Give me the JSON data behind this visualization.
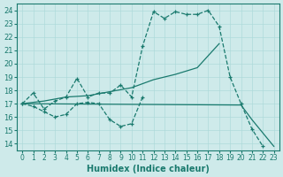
{
  "xlabel": "Humidex (Indice chaleur)",
  "background_color": "#ceeaea",
  "line_color": "#1a7a6e",
  "xlim": [
    -0.5,
    23.5
  ],
  "ylim": [
    13.5,
    24.5
  ],
  "xtick_labels": [
    "0",
    "1",
    "2",
    "3",
    "4",
    "5",
    "6",
    "7",
    "8",
    "9",
    "10",
    "11",
    "12",
    "13",
    "14",
    "15",
    "16",
    "17",
    "18",
    "19",
    "20",
    "21",
    "22",
    "23"
  ],
  "ytick_labels": [
    "14",
    "15",
    "16",
    "17",
    "18",
    "19",
    "20",
    "21",
    "22",
    "23",
    "24"
  ],
  "lines": [
    {
      "x": [
        0,
        1,
        2,
        3,
        4,
        5,
        6,
        7,
        8,
        9,
        10,
        11,
        12,
        13,
        14,
        15,
        16,
        17,
        18,
        19,
        20,
        21,
        22
      ],
      "y": [
        17.0,
        17.8,
        16.6,
        17.2,
        17.5,
        18.9,
        17.5,
        17.8,
        17.8,
        18.4,
        17.5,
        21.3,
        23.9,
        23.4,
        23.9,
        23.7,
        23.7,
        24.0,
        22.8,
        19.0,
        17.0,
        15.1,
        13.8
      ],
      "linestyle": "--",
      "marker": "+"
    },
    {
      "x": [
        0,
        1,
        2,
        3,
        4,
        5,
        6,
        7,
        8,
        9,
        10,
        11
      ],
      "y": [
        17.0,
        16.8,
        16.4,
        16.0,
        16.2,
        17.0,
        17.1,
        17.0,
        15.8,
        15.3,
        15.5,
        17.5
      ],
      "linestyle": "--",
      "marker": "+"
    },
    {
      "x": [
        0,
        2,
        4,
        6,
        8,
        10,
        11,
        12,
        14,
        16,
        18
      ],
      "y": [
        17.0,
        17.2,
        17.5,
        17.6,
        17.9,
        18.2,
        18.5,
        18.8,
        19.2,
        19.7,
        21.5
      ],
      "linestyle": "-",
      "marker": null
    },
    {
      "x": [
        0,
        20,
        21,
        22,
        23
      ],
      "y": [
        17.0,
        16.9,
        15.8,
        14.8,
        13.8
      ],
      "linestyle": "-",
      "marker": null
    }
  ]
}
